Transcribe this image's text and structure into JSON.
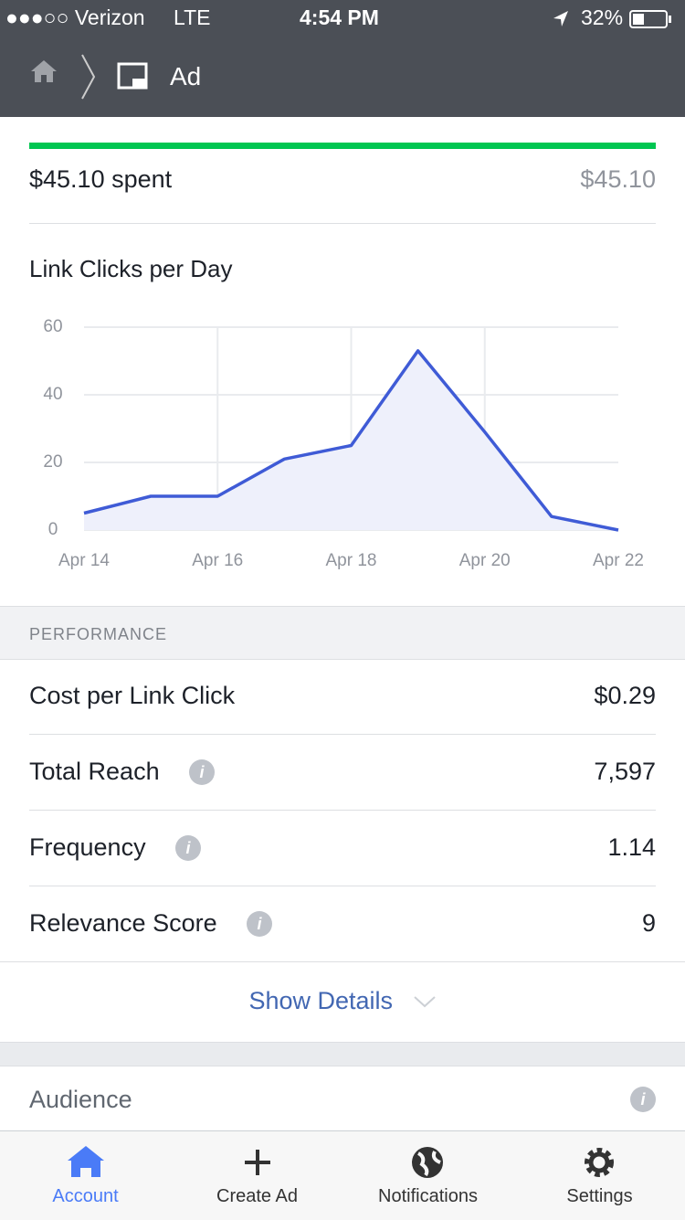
{
  "status_bar": {
    "carrier": "●●●○○ Verizon",
    "network": "LTE",
    "time": "4:54 PM",
    "battery": "32%"
  },
  "nav": {
    "title": "Ad"
  },
  "spend": {
    "amount": "$45.10",
    "label": "spent",
    "budget": "$45.10"
  },
  "chart_data": {
    "type": "line",
    "title": "Link Clicks per Day",
    "categories": [
      "Apr 14",
      null,
      "Apr 16",
      null,
      "Apr 18",
      null,
      "Apr 20",
      null,
      "Apr 22"
    ],
    "values": [
      5,
      10,
      10,
      21,
      25,
      53,
      29,
      4,
      0
    ],
    "color": "#3f5bd6",
    "fill": "#eef0fb",
    "ylim": [
      0,
      60
    ],
    "yticks": [
      0,
      20,
      40,
      60
    ],
    "grid": true
  },
  "performance": {
    "header": "PERFORMANCE",
    "rows": [
      [
        "Cost per Link Click",
        "$0.29"
      ],
      [
        "Total Reach",
        "7,597"
      ],
      [
        "Frequency",
        "1.14"
      ],
      [
        "Relevance Score",
        "9"
      ]
    ]
  },
  "show_details": "Show Details",
  "audience": "Audience",
  "tabs": [
    "Account",
    "Create Ad",
    "Notifications",
    "Settings"
  ]
}
